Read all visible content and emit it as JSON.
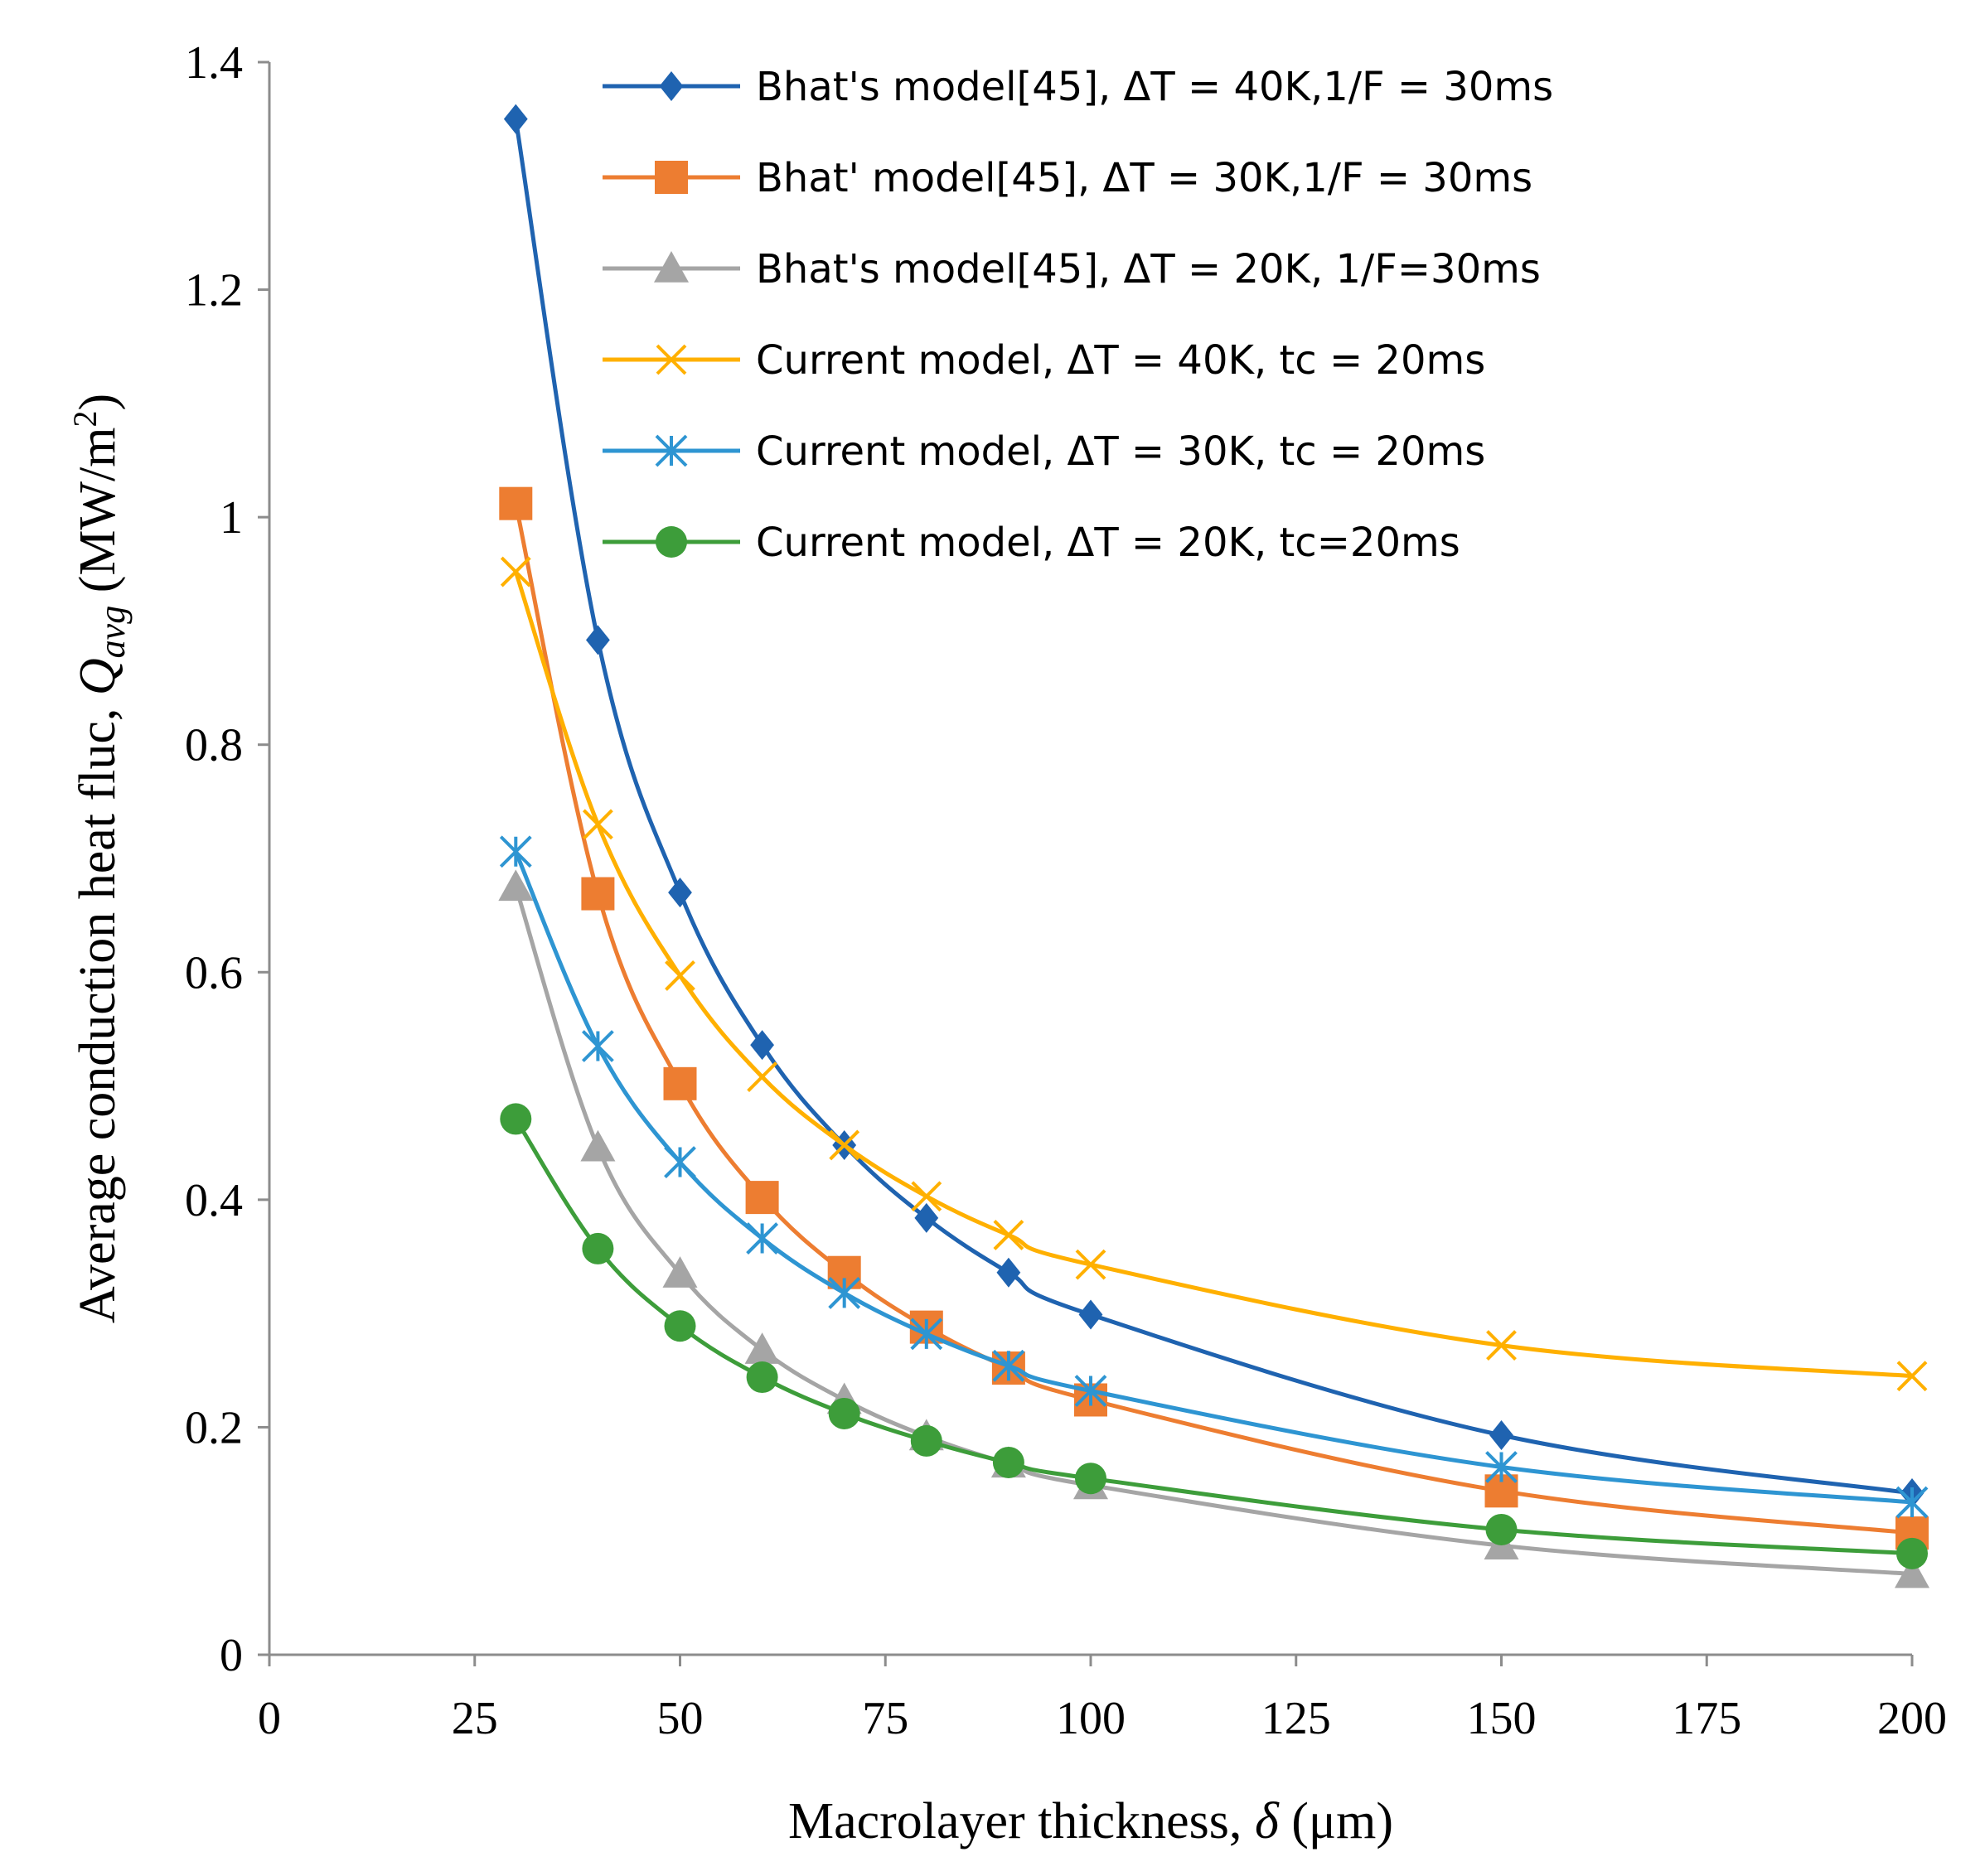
{
  "chart_data": {
    "type": "line",
    "xlabel": "Macrolayer thickness, δ (μm)",
    "xlabel_parts": {
      "prefix": "Macrolayer thickness, ",
      "symbol": "δ",
      "suffix": " (μm)"
    },
    "ylabel": "Average conduction heat fluc, Qavg (MW/m2)",
    "ylabel_parts": {
      "prefix": "Average conduction heat fluc, ",
      "symbol": "Q",
      "subscript": "avg",
      "unit_open": " (MW/m",
      "superscript": "2",
      "unit_close": ")"
    },
    "xlim": [
      0,
      200
    ],
    "ylim": [
      0,
      1.4
    ],
    "xticks": [
      0,
      25,
      50,
      75,
      100,
      125,
      150,
      175,
      200
    ],
    "xtick_labels": [
      "0",
      "25",
      "50",
      "75",
      "100",
      "125",
      "150",
      "175",
      "200"
    ],
    "yticks": [
      0,
      0.2,
      0.4,
      0.6,
      0.8,
      1.0,
      1.2,
      1.4
    ],
    "ytick_labels": [
      "0",
      "0.2",
      "0.4",
      "0.6",
      "0.8",
      "1",
      "1.2",
      "1.4"
    ],
    "grid": false,
    "legend_position": "top-right",
    "x": [
      30,
      40,
      50,
      60,
      70,
      80,
      90,
      100,
      150,
      200
    ],
    "series": [
      {
        "name": "Bhat's model[45], ΔT = 40K,1/F = 30ms",
        "color": "#1f63b0",
        "marker": "diamond",
        "values": [
          1.35,
          0.892,
          0.67,
          0.536,
          0.448,
          0.384,
          0.336,
          0.299,
          0.193,
          0.142
        ]
      },
      {
        "name": "Bhat' model[45], ΔT = 30K,1/F = 30ms",
        "color": "#ed7d31",
        "marker": "square",
        "values": [
          1.012,
          0.669,
          0.502,
          0.402,
          0.336,
          0.288,
          0.252,
          0.224,
          0.144,
          0.107
        ]
      },
      {
        "name": "Bhat's model[45], ΔT = 20K, 1/F=30ms",
        "color": "#a5a5a5",
        "marker": "triangle",
        "values": [
          0.675,
          0.446,
          0.335,
          0.268,
          0.224,
          0.192,
          0.168,
          0.149,
          0.096,
          0.071
        ]
      },
      {
        "name": "Current model, ΔT = 40K, tc = 20ms",
        "color": "#ffb000",
        "marker": "x",
        "values": [
          0.952,
          0.73,
          0.597,
          0.508,
          0.448,
          0.403,
          0.369,
          0.343,
          0.272,
          0.245
        ]
      },
      {
        "name": "Current model, ΔT = 30K, tc = 20ms",
        "color": "#2e95d2",
        "marker": "asterisk",
        "values": [
          0.706,
          0.535,
          0.433,
          0.366,
          0.318,
          0.282,
          0.254,
          0.232,
          0.165,
          0.134
        ]
      },
      {
        "name": "Current model, ΔT = 20K, tc=20ms",
        "color": "#3d9d3a",
        "marker": "circle",
        "values": [
          0.471,
          0.357,
          0.289,
          0.244,
          0.212,
          0.188,
          0.169,
          0.155,
          0.11,
          0.089
        ]
      }
    ]
  }
}
